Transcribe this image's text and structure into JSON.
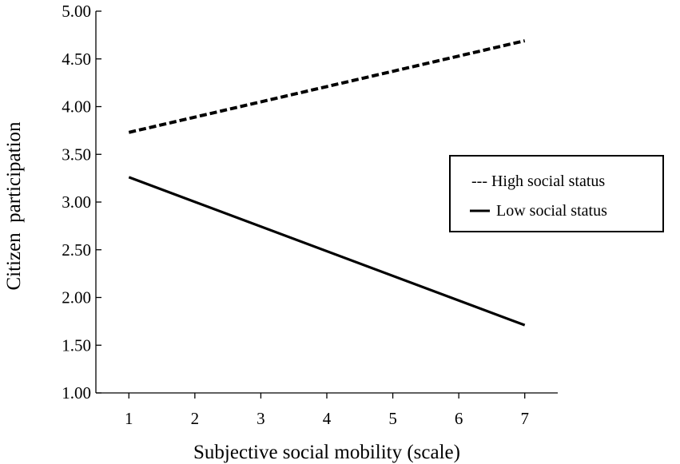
{
  "chart_data": {
    "type": "line",
    "title": "",
    "xlabel": "Subjective social mobility (scale)",
    "ylabel": "Citizen  participation",
    "x": [
      1,
      2,
      3,
      4,
      5,
      6,
      7
    ],
    "x_tick_labels": [
      "1",
      "2",
      "3",
      "4",
      "5",
      "6",
      "7"
    ],
    "y_tick_labels": [
      "1.00",
      "1.50",
      "2.00",
      "2.50",
      "3.00",
      "3.50",
      "4.00",
      "4.50",
      "5.00"
    ],
    "y_ticks": [
      1.0,
      1.5,
      2.0,
      2.5,
      3.0,
      3.5,
      4.0,
      4.5,
      5.0
    ],
    "xlim": [
      0.5,
      7.5
    ],
    "ylim": [
      1.0,
      5.0
    ],
    "grid": false,
    "legend_position": "right",
    "series": [
      {
        "name": "High social status",
        "legend_label": "--- High social status",
        "style": "dashed",
        "color": "#000000",
        "x": [
          1,
          7
        ],
        "y": [
          3.73,
          4.69
        ]
      },
      {
        "name": "Low social status",
        "legend_label": "Low social status",
        "style": "solid",
        "color": "#000000",
        "x": [
          1,
          7
        ],
        "y": [
          3.26,
          1.71
        ]
      }
    ]
  }
}
